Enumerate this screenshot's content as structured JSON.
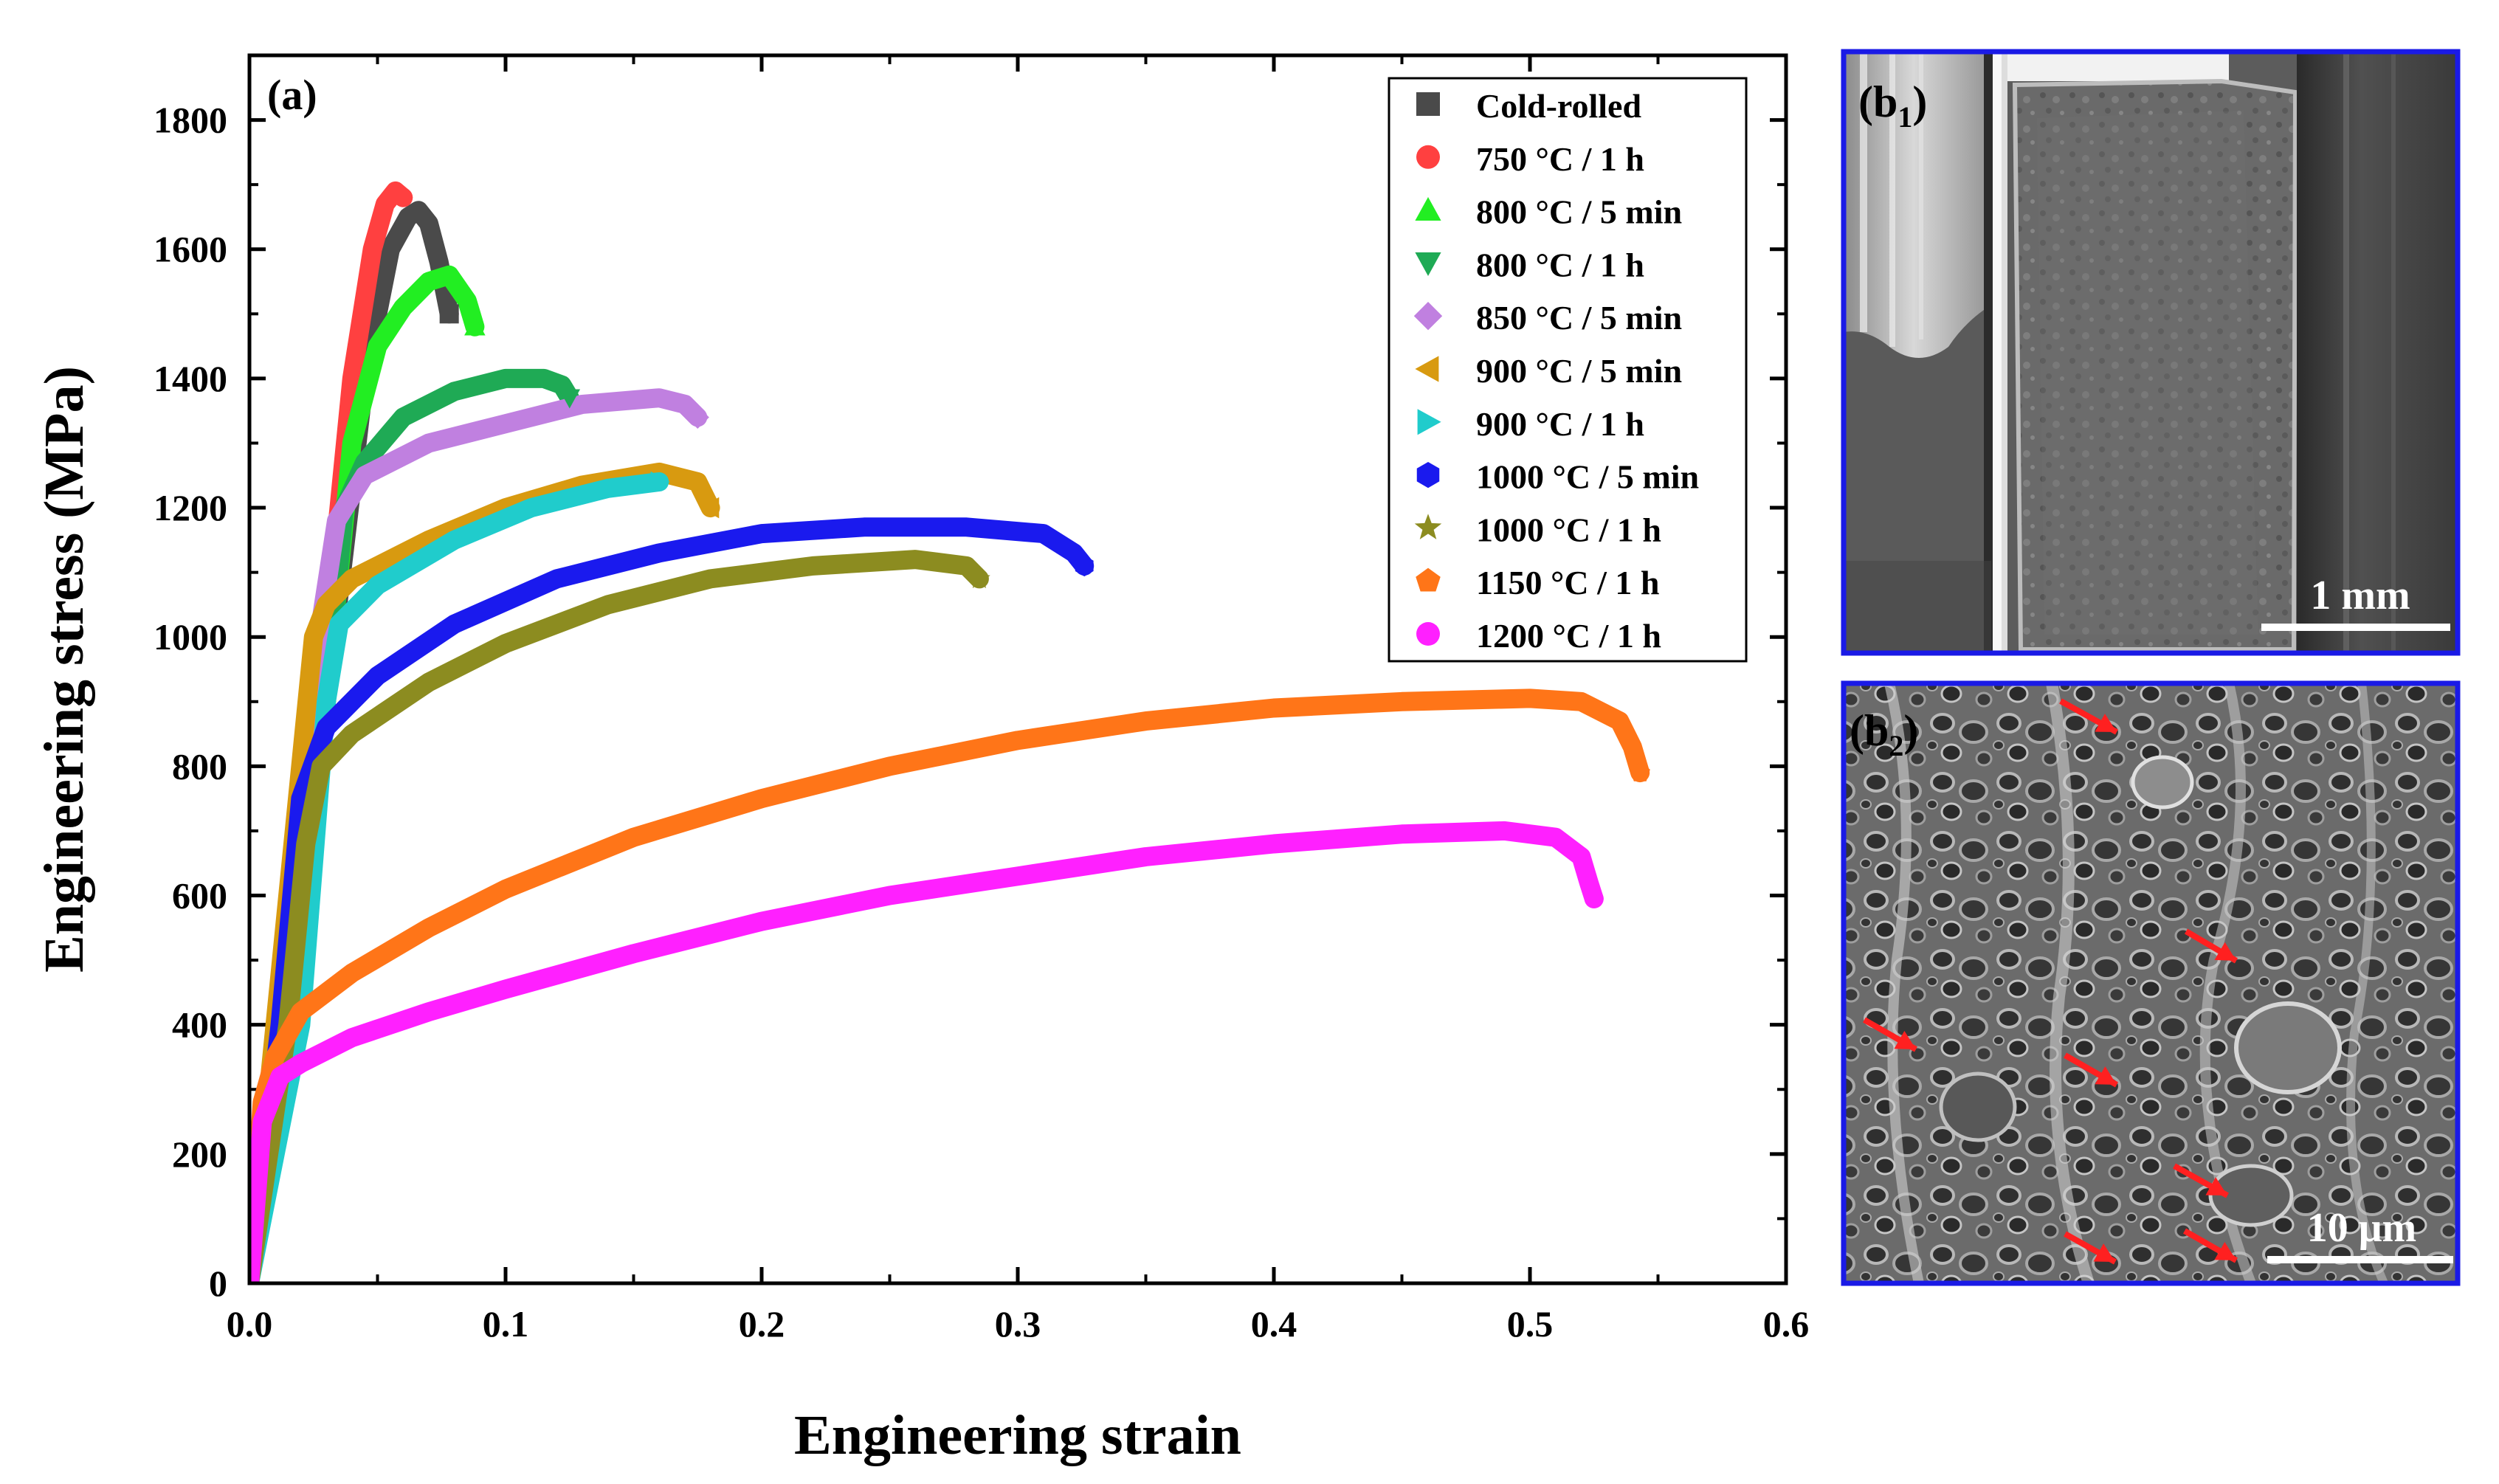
{
  "chart_data": {
    "type": "line",
    "panel_label": "(a)",
    "xlabel": "Engineering strain",
    "ylabel": "Engineering stress (MPa)",
    "xlim": [
      0,
      0.6
    ],
    "ylim": [
      0,
      1900
    ],
    "x_ticks": [
      "0.0",
      "0.1",
      "0.2",
      "0.3",
      "0.4",
      "0.5",
      "0.6"
    ],
    "y_ticks": [
      "0",
      "200",
      "400",
      "600",
      "800",
      "1000",
      "1200",
      "1400",
      "1600",
      "1800"
    ],
    "legend_position": "top-right",
    "series": [
      {
        "name": "Cold-rolled",
        "color": "#4a4a4a",
        "marker": "square",
        "x": [
          0,
          0.03,
          0.045,
          0.055,
          0.062,
          0.066,
          0.07,
          0.074,
          0.078
        ],
        "y": [
          0,
          900,
          1400,
          1600,
          1650,
          1660,
          1640,
          1580,
          1500
        ]
      },
      {
        "name": "750 °C / 1 h",
        "color": "#ff4040",
        "marker": "circle",
        "x": [
          0,
          0.02,
          0.03,
          0.04,
          0.048,
          0.053,
          0.057,
          0.06
        ],
        "y": [
          0,
          600,
          1000,
          1400,
          1600,
          1670,
          1690,
          1680
        ]
      },
      {
        "name": "800 °C / 5 min",
        "color": "#22ee22",
        "marker": "triangle-up",
        "x": [
          0,
          0.03,
          0.04,
          0.05,
          0.06,
          0.07,
          0.078,
          0.085,
          0.088
        ],
        "y": [
          0,
          900,
          1300,
          1450,
          1510,
          1550,
          1560,
          1520,
          1480
        ]
      },
      {
        "name": "800 °C / 1 h",
        "color": "#1faa55",
        "marker": "triangle-down",
        "x": [
          0,
          0.03,
          0.037,
          0.045,
          0.06,
          0.08,
          0.1,
          0.115,
          0.122,
          0.125
        ],
        "y": [
          0,
          900,
          1200,
          1270,
          1340,
          1380,
          1400,
          1400,
          1390,
          1370
        ]
      },
      {
        "name": "850 °C / 5 min",
        "color": "#c080e0",
        "marker": "diamond",
        "x": [
          0,
          0.027,
          0.034,
          0.045,
          0.07,
          0.1,
          0.13,
          0.16,
          0.17,
          0.175
        ],
        "y": [
          0,
          1000,
          1180,
          1250,
          1300,
          1330,
          1360,
          1370,
          1360,
          1340
        ]
      },
      {
        "name": "900 °C / 5 min",
        "color": "#d89a10",
        "marker": "triangle-left",
        "x": [
          0,
          0.025,
          0.03,
          0.04,
          0.07,
          0.1,
          0.13,
          0.16,
          0.175,
          0.18
        ],
        "y": [
          0,
          1000,
          1050,
          1090,
          1150,
          1200,
          1235,
          1255,
          1240,
          1200
        ]
      },
      {
        "name": "900 °C / 1 h",
        "color": "#20cccc",
        "marker": "triangle-right",
        "x": [
          0,
          0.02,
          0.03,
          0.035,
          0.05,
          0.08,
          0.11,
          0.14,
          0.16
        ],
        "y": [
          0,
          400,
          900,
          1020,
          1080,
          1150,
          1200,
          1230,
          1240
        ]
      },
      {
        "name": "1000 °C / 5 min",
        "color": "#1a1aee",
        "marker": "hexagon",
        "x": [
          0,
          0.012,
          0.02,
          0.03,
          0.05,
          0.08,
          0.12,
          0.16,
          0.2,
          0.24,
          0.28,
          0.31,
          0.322,
          0.326
        ],
        "y": [
          0,
          400,
          750,
          860,
          940,
          1020,
          1090,
          1130,
          1160,
          1170,
          1170,
          1160,
          1130,
          1110
        ]
      },
      {
        "name": "1000 °C / 1 h",
        "color": "#8c8c20",
        "marker": "star",
        "x": [
          0,
          0.015,
          0.022,
          0.028,
          0.04,
          0.07,
          0.1,
          0.14,
          0.18,
          0.22,
          0.26,
          0.28,
          0.285
        ],
        "y": [
          0,
          400,
          680,
          800,
          850,
          930,
          990,
          1050,
          1090,
          1110,
          1120,
          1110,
          1090
        ]
      },
      {
        "name": "1150 °C / 1 h",
        "color": "#ff7518",
        "marker": "pentagon",
        "x": [
          0,
          0.005,
          0.01,
          0.02,
          0.04,
          0.07,
          0.1,
          0.15,
          0.2,
          0.25,
          0.3,
          0.35,
          0.4,
          0.45,
          0.5,
          0.52,
          0.535,
          0.54,
          0.543
        ],
        "y": [
          0,
          280,
          350,
          420,
          480,
          550,
          610,
          690,
          750,
          800,
          840,
          870,
          890,
          900,
          905,
          900,
          870,
          830,
          790
        ]
      },
      {
        "name": "1200 °C / 1 h",
        "color": "#ff20ff",
        "marker": "sphere",
        "x": [
          0,
          0.005,
          0.012,
          0.02,
          0.04,
          0.07,
          0.1,
          0.15,
          0.2,
          0.25,
          0.3,
          0.35,
          0.4,
          0.45,
          0.49,
          0.51,
          0.52,
          0.523,
          0.525
        ],
        "y": [
          0,
          250,
          320,
          340,
          380,
          420,
          455,
          510,
          560,
          600,
          630,
          660,
          680,
          695,
          700,
          690,
          660,
          620,
          595
        ]
      }
    ]
  },
  "insets": [
    {
      "label_main": "(b",
      "label_sub": "1",
      "label_close": ")",
      "scale_bar": "1 mm"
    },
    {
      "label_main": "(b",
      "label_sub": "2",
      "label_close": ")",
      "scale_bar": "10 μm"
    }
  ],
  "colors": {
    "inset_border": "#1a1ae6",
    "arrows": "#ff2020"
  }
}
